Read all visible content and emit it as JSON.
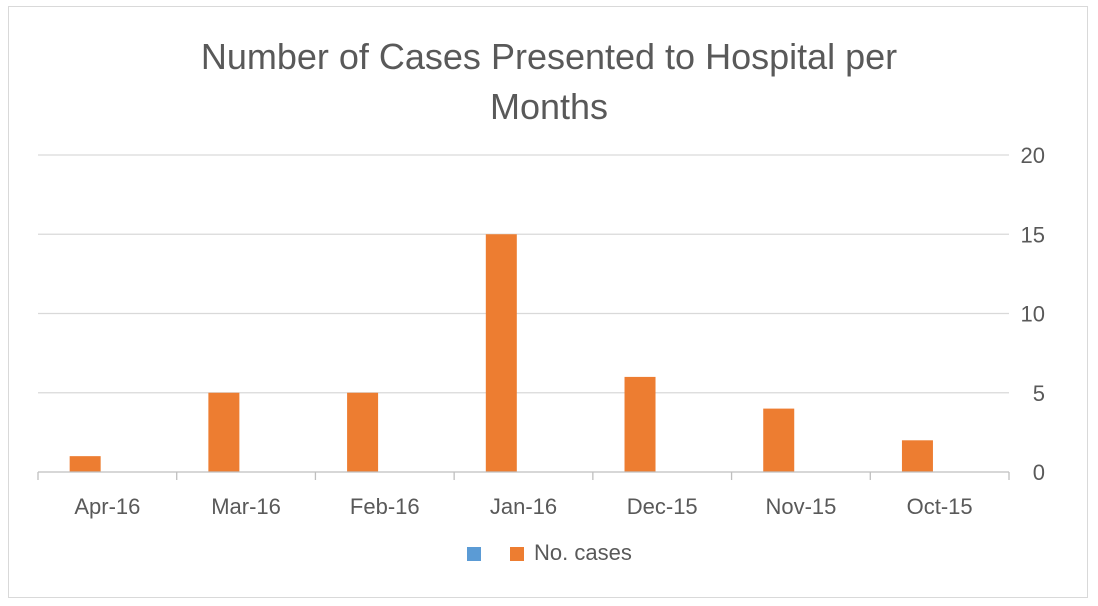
{
  "chart_data": {
    "type": "bar",
    "title": "Number of Cases Presented to Hospital per Months",
    "title_lines": [
      "Number of Cases Presented to Hospital per",
      "Months"
    ],
    "categories": [
      "Apr-16",
      "Mar-16",
      "Feb-16",
      "Jan-16",
      "Dec-15",
      "Nov-15",
      "Oct-15"
    ],
    "series": [
      {
        "name": "",
        "color": "#5B9BD5",
        "values": [
          0,
          0,
          0,
          0,
          0,
          0,
          0
        ]
      },
      {
        "name": "No. cases",
        "color": "#ED7D31",
        "values": [
          1,
          5,
          5,
          15,
          6,
          4,
          2
        ]
      }
    ],
    "ylim": [
      0,
      20
    ],
    "yticks": [
      0,
      5,
      10,
      15,
      20
    ],
    "y_axis_side": "right",
    "grid": true,
    "legend_position": "bottom",
    "xlabel": "",
    "ylabel": ""
  },
  "colors": {
    "title": "#595959",
    "tick": "#595959",
    "grid": "#d9d9d9",
    "axis": "#bfbfbf"
  }
}
